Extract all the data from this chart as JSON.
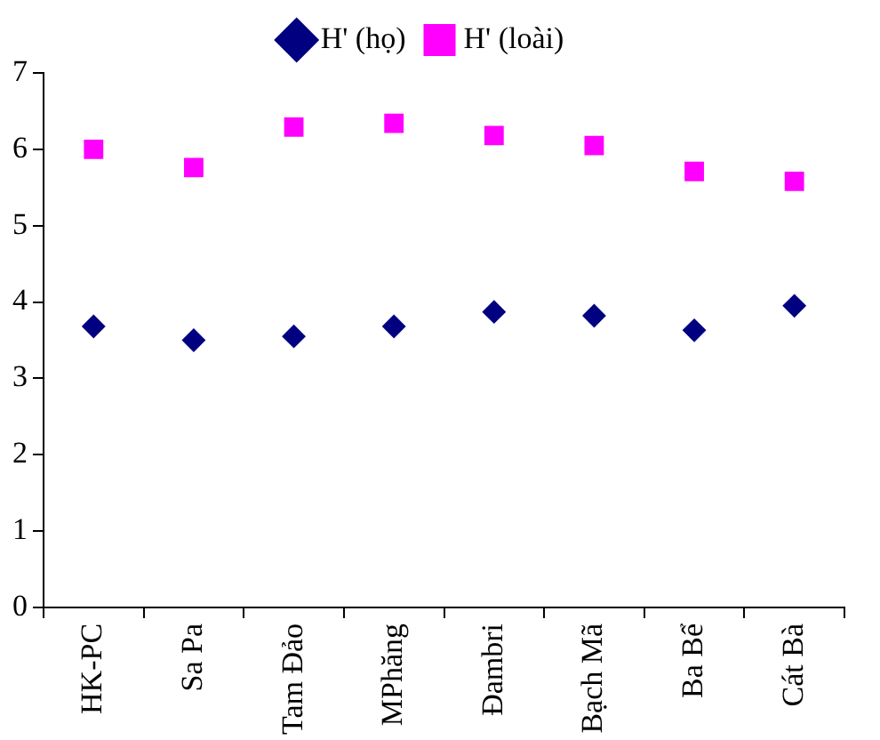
{
  "chart_data": {
    "type": "scatter",
    "categories": [
      "HK-PC",
      "Sa Pa",
      "Tam Đảo",
      "MPhăng",
      "Đambri",
      "Bạch Mã",
      "Ba Bể",
      "Cát Bà"
    ],
    "series": [
      {
        "name": "H' (họ)",
        "color": "#000080",
        "marker": "diamond",
        "values": [
          3.68,
          3.5,
          3.55,
          3.68,
          3.87,
          3.82,
          3.63,
          3.95
        ]
      },
      {
        "name": "H' (loài)",
        "color": "#ff00ff",
        "marker": "square",
        "values": [
          6.0,
          5.76,
          6.29,
          6.34,
          6.18,
          6.05,
          5.71,
          5.58
        ]
      }
    ],
    "ylim": [
      0,
      7
    ],
    "yticks": [
      0,
      1,
      2,
      3,
      4,
      5,
      6,
      7
    ],
    "grid": false,
    "legend": "top"
  }
}
